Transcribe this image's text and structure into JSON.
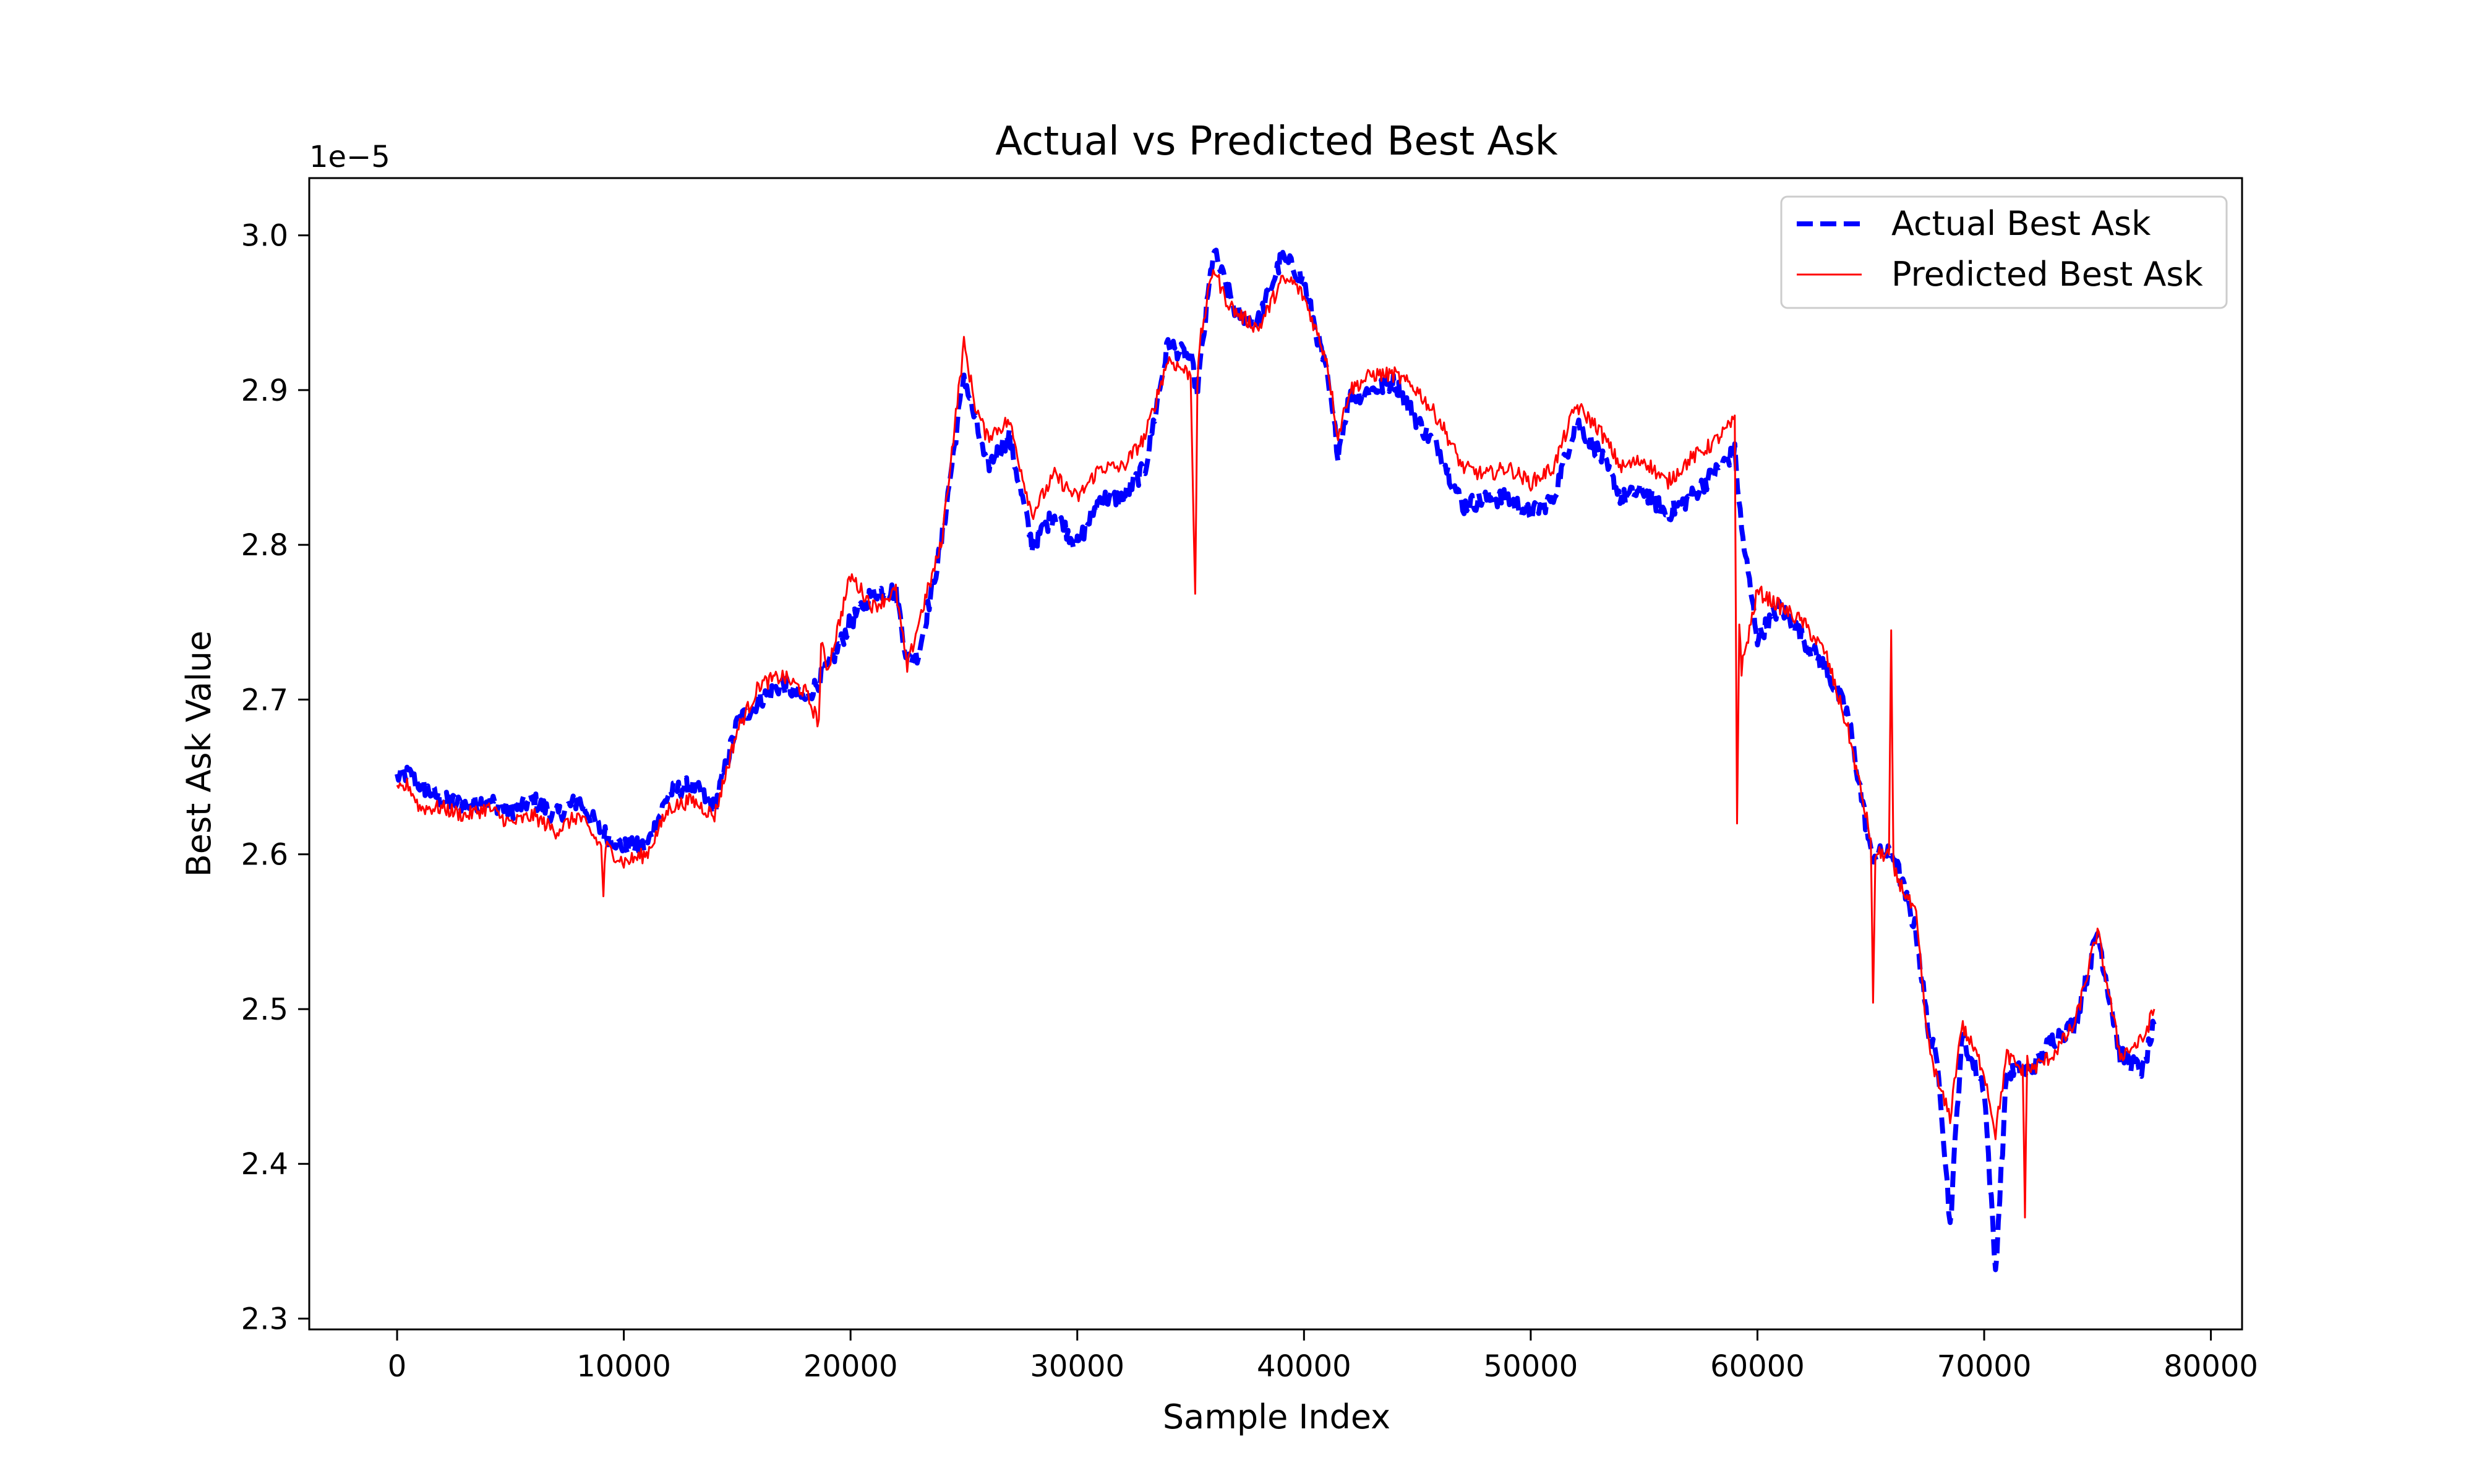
{
  "chart_data": {
    "type": "line",
    "title": "Actual vs Predicted Best Ask",
    "xlabel": "Sample Index",
    "ylabel": "Best Ask Value",
    "offset_text": "1e−5",
    "xlim": [
      -3875,
      81375
    ],
    "ylim": [
      2.293,
      3.037
    ],
    "x_ticks": [
      0,
      10000,
      20000,
      30000,
      40000,
      50000,
      60000,
      70000,
      80000
    ],
    "x_tick_labels": [
      "0",
      "10000",
      "20000",
      "30000",
      "40000",
      "50000",
      "60000",
      "70000",
      "80000"
    ],
    "y_ticks": [
      2.3,
      2.4,
      2.5,
      2.6,
      2.7,
      2.8,
      2.9,
      3.0
    ],
    "y_tick_labels": [
      "2.3",
      "2.4",
      "2.5",
      "2.6",
      "2.7",
      "2.8",
      "2.9",
      "3.0"
    ],
    "grid": false,
    "legend_position": "top-right",
    "series": [
      {
        "name": "Actual Best Ask",
        "color": "#0000ff",
        "style": "dashed",
        "x": [
          0,
          500,
          1000,
          2000,
          3000,
          4000,
          5000,
          6000,
          7000,
          8000,
          9000,
          10000,
          11000,
          12000,
          13000,
          14000,
          15000,
          16000,
          17000,
          18000,
          19000,
          20000,
          21000,
          22000,
          22500,
          23000,
          24000,
          25000,
          25500,
          26000,
          27000,
          28000,
          29000,
          30000,
          31000,
          32000,
          33000,
          34000,
          35000,
          35300,
          36000,
          36500,
          37000,
          38000,
          39000,
          39500,
          40000,
          41000,
          41500,
          42000,
          43000,
          44000,
          45000,
          46000,
          47000,
          48000,
          49000,
          50000,
          51000,
          52000,
          53000,
          54000,
          55000,
          56000,
          57000,
          58000,
          59000,
          59300,
          60000,
          61000,
          62000,
          63000,
          64000,
          65000,
          66000,
          67000,
          67500,
          68000,
          68500,
          69000,
          70000,
          70500,
          71000,
          72000,
          73000,
          74000,
          75000,
          76000,
          77000,
          77500
        ],
        "y": [
          2.65,
          2.652,
          2.645,
          2.635,
          2.632,
          2.635,
          2.628,
          2.635,
          2.625,
          2.635,
          2.615,
          2.605,
          2.605,
          2.64,
          2.645,
          2.63,
          2.685,
          2.7,
          2.71,
          2.7,
          2.72,
          2.75,
          2.77,
          2.77,
          2.725,
          2.73,
          2.8,
          2.91,
          2.88,
          2.85,
          2.87,
          2.8,
          2.82,
          2.8,
          2.83,
          2.83,
          2.85,
          2.93,
          2.92,
          2.9,
          2.99,
          2.97,
          2.95,
          2.945,
          2.985,
          2.98,
          2.97,
          2.91,
          2.86,
          2.895,
          2.9,
          2.905,
          2.88,
          2.86,
          2.825,
          2.83,
          2.83,
          2.82,
          2.83,
          2.88,
          2.86,
          2.83,
          2.835,
          2.82,
          2.83,
          2.845,
          2.86,
          2.81,
          2.74,
          2.76,
          2.74,
          2.72,
          2.69,
          2.6,
          2.6,
          2.55,
          2.49,
          2.46,
          2.36,
          2.48,
          2.45,
          2.33,
          2.46,
          2.46,
          2.48,
          2.49,
          2.55,
          2.47,
          2.46,
          2.49
        ]
      },
      {
        "name": "Predicted Best Ask",
        "color": "#ff0000",
        "style": "solid",
        "x": [
          0,
          500,
          1000,
          2000,
          3000,
          4000,
          5000,
          6000,
          7000,
          8000,
          9000,
          9100,
          9200,
          10000,
          11000,
          12000,
          13000,
          14000,
          15000,
          16000,
          17000,
          18000,
          18600,
          18700,
          19000,
          20000,
          21000,
          22000,
          22500,
          23000,
          24000,
          25000,
          25500,
          26000,
          27000,
          28000,
          29000,
          30000,
          31000,
          32000,
          33000,
          34000,
          35000,
          35200,
          35300,
          35400,
          36000,
          36500,
          37000,
          38000,
          39000,
          39500,
          40000,
          41000,
          41500,
          42000,
          43000,
          44000,
          45000,
          46000,
          47000,
          48000,
          49000,
          50000,
          51000,
          52000,
          53000,
          54000,
          55000,
          56000,
          57000,
          58000,
          59000,
          59100,
          59200,
          59300,
          60000,
          61000,
          62000,
          63000,
          64000,
          65000,
          65100,
          65200,
          65800,
          65900,
          66000,
          67000,
          67500,
          68000,
          68500,
          69000,
          70000,
          70500,
          71000,
          71700,
          71800,
          71900,
          72000,
          73000,
          74000,
          75000,
          76000,
          77000,
          77500
        ],
        "y": [
          2.64,
          2.645,
          2.63,
          2.63,
          2.625,
          2.63,
          2.62,
          2.625,
          2.615,
          2.625,
          2.605,
          2.575,
          2.605,
          2.595,
          2.6,
          2.63,
          2.635,
          2.625,
          2.68,
          2.71,
          2.715,
          2.705,
          2.685,
          2.735,
          2.72,
          2.78,
          2.76,
          2.77,
          2.72,
          2.75,
          2.8,
          2.93,
          2.89,
          2.87,
          2.88,
          2.82,
          2.845,
          2.83,
          2.85,
          2.85,
          2.87,
          2.92,
          2.91,
          2.77,
          2.9,
          2.93,
          2.98,
          2.96,
          2.95,
          2.94,
          2.97,
          2.97,
          2.96,
          2.92,
          2.87,
          2.9,
          2.91,
          2.91,
          2.9,
          2.88,
          2.85,
          2.845,
          2.85,
          2.84,
          2.85,
          2.89,
          2.875,
          2.85,
          2.855,
          2.84,
          2.855,
          2.865,
          2.88,
          2.62,
          2.75,
          2.72,
          2.77,
          2.76,
          2.75,
          2.73,
          2.68,
          2.61,
          2.5,
          2.6,
          2.6,
          2.74,
          2.59,
          2.56,
          2.48,
          2.45,
          2.43,
          2.49,
          2.46,
          2.42,
          2.47,
          2.46,
          2.37,
          2.47,
          2.46,
          2.47,
          2.49,
          2.55,
          2.47,
          2.48,
          2.5
        ]
      }
    ]
  }
}
